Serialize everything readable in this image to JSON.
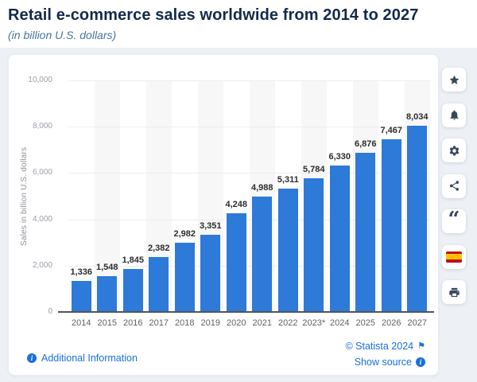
{
  "header": {
    "title": "Retail e-commerce sales worldwide from 2014 to 2027",
    "subtitle": "(in billion U.S. dollars)"
  },
  "chart_data": {
    "type": "bar",
    "title": "Retail e-commerce sales worldwide from 2014 to 2027",
    "subtitle": "(in billion U.S. dollars)",
    "categories": [
      "2014",
      "2015",
      "2016",
      "2017",
      "2018",
      "2019",
      "2020",
      "2021",
      "2022",
      "2023*",
      "2024",
      "2025",
      "2026",
      "2027"
    ],
    "values": [
      1336,
      1548,
      1845,
      2382,
      2982,
      3351,
      4248,
      4988,
      5311,
      5784,
      6330,
      6876,
      7467,
      8034
    ],
    "value_labels": [
      "1,336",
      "1,548",
      "1,845",
      "2,382",
      "2,982",
      "3,351",
      "4,248",
      "4,988",
      "5,311",
      "5,784",
      "6,330",
      "6,876",
      "7,467",
      "8,034"
    ],
    "xlabel": "",
    "ylabel": "Sales in billion U.S. dollars",
    "ylim": [
      0,
      10000
    ],
    "yticks": [
      0,
      2000,
      4000,
      6000,
      8000,
      10000
    ],
    "ytick_labels": [
      "0",
      "2,000",
      "4,000",
      "6,000",
      "8,000",
      "10,000"
    ],
    "grid": true,
    "legend": "none",
    "bar_color": "#2d7ad9",
    "stripe_color": "#f7f7f8"
  },
  "toolbar": {
    "buttons": [
      {
        "name": "favorite-button",
        "icon": "star-icon"
      },
      {
        "name": "notification-button",
        "icon": "bell-icon"
      },
      {
        "name": "settings-button",
        "icon": "gear-icon"
      },
      {
        "name": "share-button",
        "icon": "share-icon"
      },
      {
        "name": "citation-button",
        "icon": "quote-icon"
      },
      {
        "name": "language-button",
        "icon": "spain-flag-icon"
      },
      {
        "name": "print-button",
        "icon": "printer-icon"
      }
    ]
  },
  "footer": {
    "additional_info": "Additional Information",
    "copyright": "© Statista 2024",
    "show_source": "Show source"
  }
}
